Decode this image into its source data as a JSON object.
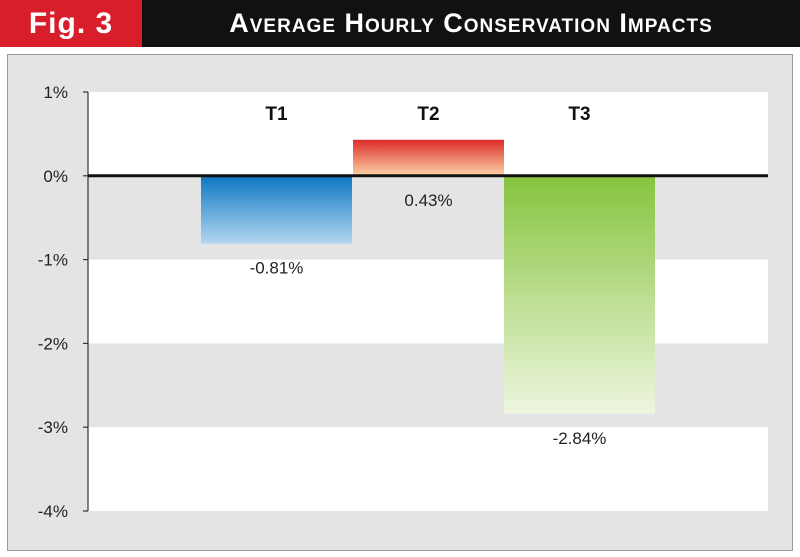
{
  "header": {
    "fig_label": "Fig. 3",
    "title": "Average Hourly Conservation Impacts"
  },
  "colors": {
    "fig_label_bg": "#d81e2a",
    "title_bg": "#111111",
    "panel_bg": "#e4e4e5",
    "band_white": "#ffffff",
    "t1_top": "#0e76c2",
    "t1_bottom": "#b3d7f1",
    "t2_top": "#dd2d2a",
    "t2_bottom": "#fbd2a6",
    "t3_top": "#86c43e",
    "t3_bottom": "#eef6df"
  },
  "chart_data": {
    "type": "bar",
    "categories": [
      "T1",
      "T2",
      "T3"
    ],
    "values": [
      -0.81,
      0.43,
      -2.84
    ],
    "value_labels": [
      "-0.81%",
      "0.43%",
      "-2.84%"
    ],
    "ylim": [
      -4,
      1
    ],
    "yticks": [
      1,
      0,
      -1,
      -2,
      -3,
      -4
    ],
    "ytick_labels": [
      "1%",
      "0%",
      "-1%",
      "-2%",
      "-3%",
      "-4%"
    ],
    "grid": "alternating bands",
    "legend": "none"
  }
}
